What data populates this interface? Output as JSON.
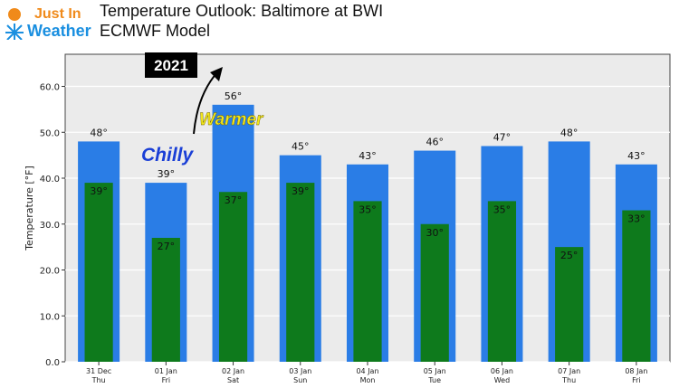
{
  "header": {
    "logo_line1": "Just In",
    "logo_line2": "Weather",
    "title": "Temperature Outlook: Baltimore at BWI",
    "subtitle": "ECMWF Model"
  },
  "annotations": {
    "year": "2021",
    "chilly": "Chilly",
    "warmer": "Warmer"
  },
  "colors": {
    "high_bar": "#2a7de6",
    "low_bar": "#0e7a1c",
    "plot_bg": "#ebebeb",
    "chilly_text": "#1a3fd6",
    "warmer_text": "#f2e61a",
    "logo_blue": "#1a8fe0",
    "logo_orange": "#f08a1a"
  },
  "chart_data": {
    "type": "bar",
    "ylabel": "Temperature [°F]",
    "ylim": [
      0,
      67
    ],
    "yticks": [
      "0.0",
      "10.0",
      "20.0",
      "30.0",
      "40.0",
      "50.0",
      "60.0"
    ],
    "categories": [
      {
        "date": "31 Dec",
        "day": "Thu"
      },
      {
        "date": "01 Jan",
        "day": "Fri"
      },
      {
        "date": "02 Jan",
        "day": "Sat"
      },
      {
        "date": "03 Jan",
        "day": "Sun"
      },
      {
        "date": "04 Jan",
        "day": "Mon"
      },
      {
        "date": "05 Jan",
        "day": "Tue"
      },
      {
        "date": "06 Jan",
        "day": "Wed"
      },
      {
        "date": "07 Jan",
        "day": "Thu"
      },
      {
        "date": "08 Jan",
        "day": "Fri"
      }
    ],
    "series": [
      {
        "values": [
          48,
          39,
          56,
          45,
          43,
          46,
          47,
          48,
          43
        ],
        "labels": [
          "48°",
          "39°",
          "56°",
          "45°",
          "43°",
          "46°",
          "47°",
          "48°",
          "43°"
        ]
      },
      {
        "values": [
          39,
          27,
          37,
          39,
          35,
          30,
          35,
          25,
          33
        ],
        "labels": [
          "39°",
          "27°",
          "37°",
          "39°",
          "35°",
          "30°",
          "35°",
          "25°",
          "33°"
        ]
      }
    ],
    "grid": true
  }
}
